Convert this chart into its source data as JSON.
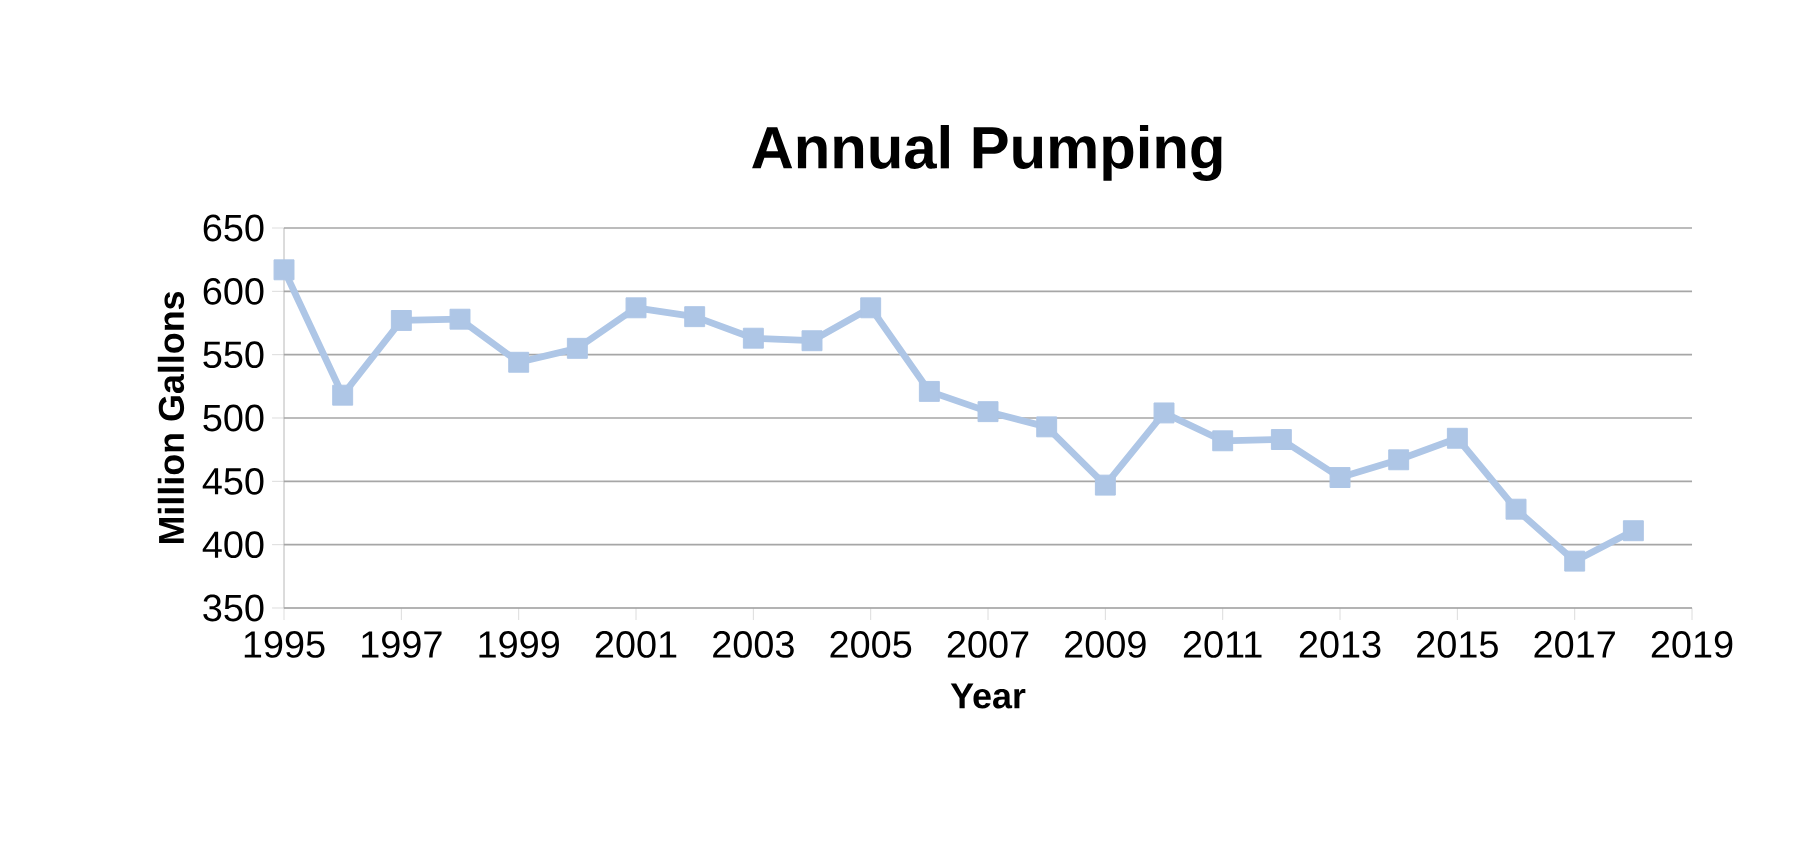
{
  "chart_data": {
    "type": "line",
    "title": "Annual Pumping",
    "xlabel": "Year",
    "ylabel": "Million Gallons",
    "x": [
      1995,
      1996,
      1997,
      1998,
      1999,
      2000,
      2001,
      2002,
      2003,
      2004,
      2005,
      2006,
      2007,
      2008,
      2009,
      2010,
      2011,
      2012,
      2013,
      2014,
      2015,
      2016,
      2017,
      2018
    ],
    "series": [
      {
        "color": "#aec6e6",
        "values": [
          617,
          518,
          577,
          578,
          544,
          555,
          587,
          580,
          563,
          561,
          587,
          521,
          505,
          493,
          447,
          504,
          482,
          483,
          453,
          467,
          484,
          428,
          387,
          411
        ]
      }
    ],
    "xlim": [
      1995,
      2019
    ],
    "xticks": [
      1995,
      1997,
      1999,
      2001,
      2003,
      2005,
      2007,
      2009,
      2011,
      2013,
      2015,
      2017,
      2019
    ],
    "ylim": [
      350,
      650
    ],
    "yticks": [
      350,
      400,
      450,
      500,
      550,
      600,
      650
    ],
    "grid": "y",
    "marker": "square",
    "line_style": "solid"
  }
}
